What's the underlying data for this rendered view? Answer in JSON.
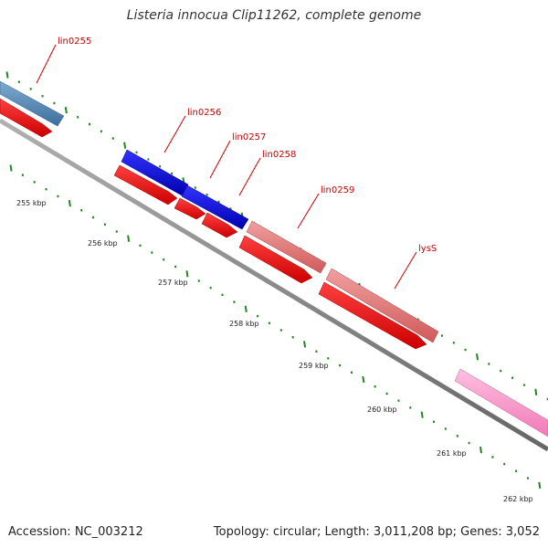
{
  "title": "Listeria innocua Clip11262, complete genome",
  "footer": {
    "accession": "Accession: NC_003212",
    "summary": "Topology: circular; Length: 3,011,208 bp; Genes: 3,052"
  },
  "ruler": {
    "labels": [
      "255 kbp",
      "256 kbp",
      "257 kbp",
      "258 kbp",
      "259 kbp",
      "260 kbp",
      "261 kbp",
      "262 kbp"
    ]
  },
  "genes": [
    {
      "label": "lin0255",
      "color": "#4a82b4"
    },
    {
      "label": "lin0256",
      "color": "#0000dd"
    },
    {
      "label": "lin0257",
      "color": "#0000dd"
    },
    {
      "label": "lin0258",
      "color": "#e06060"
    },
    {
      "label": "lin0259",
      "color": "#e06060"
    },
    {
      "label": "lysS",
      "color": "#e06060"
    }
  ],
  "colors": {
    "backbone": "#7a7a7a",
    "cds": "#ee0000",
    "ticks": "#228822",
    "label_lines": "#cc0000",
    "extra_feature": "#ff99cc"
  }
}
